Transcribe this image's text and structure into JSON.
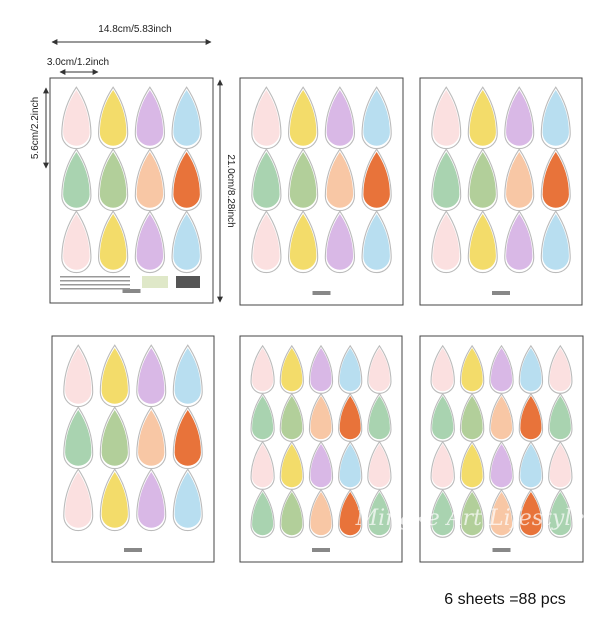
{
  "dimensions": {
    "sheet_width": "14.8cm/5.83inch",
    "drop_width": "3.0cm/1.2inch",
    "drop_height": "5.6cm/2.2inch",
    "sheet_height": "21.0cm/8.28inch"
  },
  "caption": "6 sheets =88 pcs",
  "watermark": "Mingke Art Lifestyle"
}
